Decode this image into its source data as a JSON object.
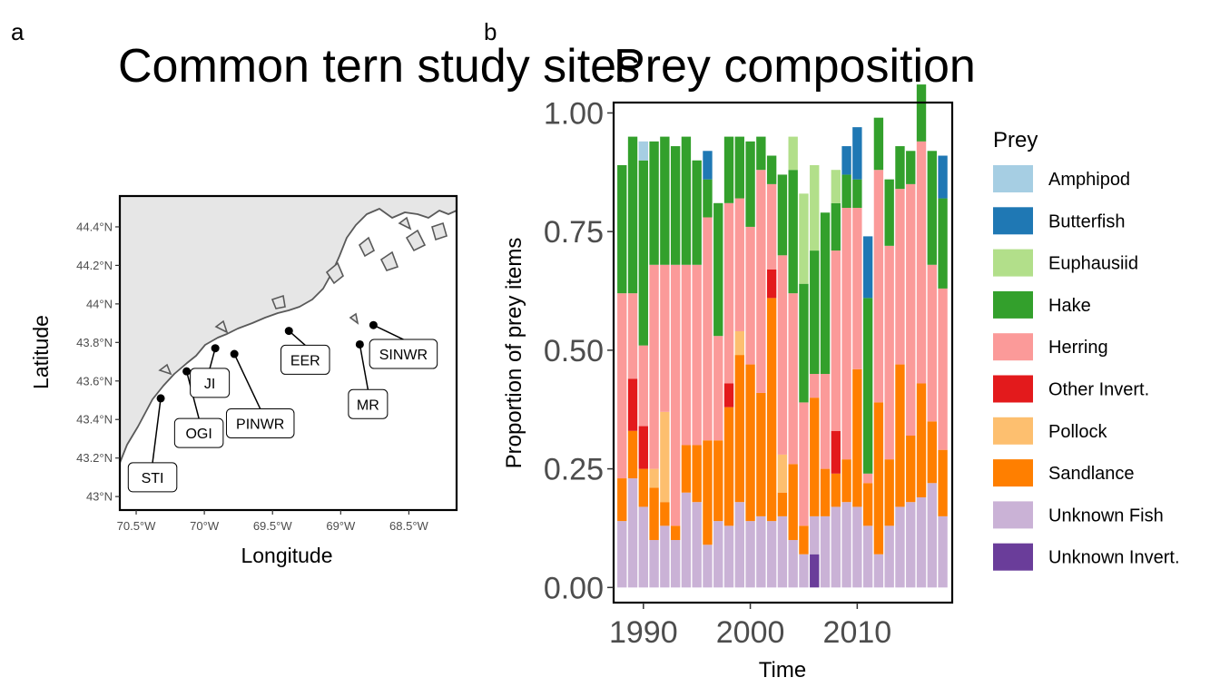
{
  "panel_a": {
    "letter": "a",
    "title": "Common tern study sites",
    "xlabel": "Longitude",
    "ylabel": "Latitude",
    "x_ticks": [
      "70.5°W",
      "70°W",
      "69.5°W",
      "69°W",
      "68.5°W"
    ],
    "x_tick_values": [
      -70.5,
      -70.0,
      -69.5,
      -69.0,
      -68.5
    ],
    "y_ticks": [
      "43°N",
      "43.2°N",
      "43.4°N",
      "43.6°N",
      "43.8°N",
      "44°N",
      "44.2°N",
      "44.4°N"
    ],
    "y_tick_values": [
      43.0,
      43.2,
      43.4,
      43.6,
      43.8,
      44.0,
      44.2,
      44.4
    ],
    "xlim": [
      -70.62,
      -68.15
    ],
    "ylim": [
      42.93,
      44.56
    ],
    "colors": {
      "land": "#e6e6e6",
      "coast": "#595959",
      "sea": "#ffffff"
    },
    "sites": [
      {
        "name": "STI",
        "lon": -70.32,
        "lat": 43.51,
        "label_lon": -70.38,
        "label_lat": 43.1
      },
      {
        "name": "OGI",
        "lon": -70.13,
        "lat": 43.65,
        "label_lon": -70.04,
        "label_lat": 43.33
      },
      {
        "name": "JI",
        "lon": -69.92,
        "lat": 43.77,
        "label_lon": -69.96,
        "label_lat": 43.59
      },
      {
        "name": "PINWR",
        "lon": -69.78,
        "lat": 43.74,
        "label_lon": -69.59,
        "label_lat": 43.38
      },
      {
        "name": "EER",
        "lon": -69.38,
        "lat": 43.86,
        "label_lon": -69.26,
        "label_lat": 43.71
      },
      {
        "name": "MR",
        "lon": -68.86,
        "lat": 43.79,
        "label_lon": -68.8,
        "label_lat": 43.48
      },
      {
        "name": "SINWR",
        "lon": -68.76,
        "lat": 43.89,
        "label_lon": -68.54,
        "label_lat": 43.74
      }
    ]
  },
  "chart_data": {
    "type": "bar",
    "letter": "b",
    "title": "Prey composition",
    "xlabel": "Time",
    "ylabel": "Proportion of prey items",
    "x_ticks": [
      "1990",
      "2000",
      "2010"
    ],
    "x_tick_values": [
      1990,
      2000,
      2010
    ],
    "y_ticks": [
      "0.00",
      "0.25",
      "0.50",
      "0.75",
      "1.00"
    ],
    "y_tick_values": [
      0,
      0.25,
      0.5,
      0.75,
      1.0
    ],
    "xlim": [
      1987.3,
      2018.8
    ],
    "ylim": [
      -0.03,
      1.02
    ],
    "stacked": true,
    "legend_title": "Prey",
    "legend_position": "right",
    "categories": [
      1988,
      1989,
      1990,
      1991,
      1992,
      1993,
      1994,
      1995,
      1996,
      1997,
      1998,
      1999,
      2000,
      2001,
      2002,
      2003,
      2004,
      2005,
      2006,
      2007,
      2008,
      2009,
      2010,
      2011,
      2012,
      2013,
      2014,
      2015,
      2016,
      2017,
      2018
    ],
    "series": [
      {
        "name": "Unknown Invert.",
        "color": "#6a3d9a",
        "values": [
          0,
          0,
          0,
          0,
          0,
          0,
          0,
          0,
          0,
          0,
          0,
          0,
          0,
          0,
          0,
          0,
          0,
          0,
          0.07,
          0,
          0,
          0,
          0,
          0,
          0,
          0,
          0,
          0,
          0,
          0,
          0
        ]
      },
      {
        "name": "Unknown Fish",
        "color": "#cab2d6",
        "values": [
          0.14,
          0.23,
          0.17,
          0.1,
          0.13,
          0.1,
          0.2,
          0.18,
          0.09,
          0.14,
          0.13,
          0.18,
          0.14,
          0.15,
          0.14,
          0.15,
          0.1,
          0.07,
          0.08,
          0.15,
          0.17,
          0.18,
          0.17,
          0.13,
          0.07,
          0.13,
          0.17,
          0.18,
          0.19,
          0.22,
          0.15
        ]
      },
      {
        "name": "Sandlance",
        "color": "#ff7f00",
        "values": [
          0.09,
          0.1,
          0.08,
          0.11,
          0.05,
          0.03,
          0.1,
          0.12,
          0.22,
          0.17,
          0.25,
          0.31,
          0.33,
          0.26,
          0.47,
          0.05,
          0.16,
          0.06,
          0.25,
          0.1,
          0.07,
          0.09,
          0.29,
          0.09,
          0.32,
          0.14,
          0.3,
          0.14,
          0.24,
          0.13,
          0.14
        ]
      },
      {
        "name": "Pollock",
        "color": "#fdbf6f",
        "values": [
          0,
          0,
          0,
          0.04,
          0.19,
          0,
          0,
          0,
          0,
          0,
          0,
          0.05,
          0,
          0,
          0,
          0.08,
          0,
          0,
          0,
          0,
          0,
          0,
          0,
          0,
          0,
          0,
          0,
          0,
          0,
          0,
          0
        ]
      },
      {
        "name": "Other Invert.",
        "color": "#e31a1c",
        "values": [
          0,
          0.11,
          0.09,
          0,
          0,
          0,
          0,
          0,
          0,
          0,
          0.05,
          0,
          0,
          0,
          0.06,
          0,
          0,
          0,
          0,
          0,
          0.09,
          0,
          0,
          0,
          0,
          0,
          0,
          0,
          0,
          0,
          0
        ]
      },
      {
        "name": "Herring",
        "color": "#fb9a99",
        "values": [
          0.39,
          0.18,
          0.17,
          0.43,
          0.31,
          0.55,
          0.38,
          0.38,
          0.47,
          0.22,
          0.38,
          0.28,
          0.29,
          0.47,
          0.18,
          0.42,
          0.36,
          0.26,
          0.05,
          0.2,
          0.38,
          0.53,
          0.34,
          0.02,
          0.49,
          0.45,
          0.37,
          0.53,
          0.51,
          0.33,
          0.34
        ]
      },
      {
        "name": "Hake",
        "color": "#33a02c",
        "values": [
          0.27,
          0.33,
          0.39,
          0.26,
          0.27,
          0.25,
          0.27,
          0.22,
          0.08,
          0.28,
          0.14,
          0.13,
          0.18,
          0.07,
          0.06,
          0.17,
          0.26,
          0.25,
          0.26,
          0.34,
          0.1,
          0.07,
          0.06,
          0.37,
          0.11,
          0.14,
          0.09,
          0.07,
          0.12,
          0.24,
          0.19
        ]
      },
      {
        "name": "Euphausiid",
        "color": "#b2df8a",
        "values": [
          0,
          0,
          0,
          0,
          0,
          0,
          0,
          0,
          0,
          0,
          0,
          0,
          0,
          0,
          0,
          0,
          0.07,
          0.19,
          0.18,
          0,
          0.07,
          0,
          0,
          0,
          0,
          0,
          0,
          0,
          0,
          0,
          0
        ]
      },
      {
        "name": "Butterfish",
        "color": "#1f78b4",
        "values": [
          0,
          0,
          0,
          0,
          0,
          0,
          0,
          0,
          0.06,
          0,
          0,
          0,
          0,
          0,
          0,
          0,
          0,
          0,
          0,
          0,
          0,
          0.06,
          0.11,
          0.13,
          0,
          0,
          0,
          0,
          0,
          0,
          0.09
        ]
      },
      {
        "name": "Amphipod",
        "color": "#a6cee3",
        "values": [
          0,
          0,
          0.04,
          0,
          0,
          0,
          0,
          0,
          0,
          0,
          0,
          0,
          0,
          0,
          0,
          0,
          0,
          0,
          0,
          0,
          0,
          0,
          0,
          0,
          0,
          0,
          0,
          0,
          0,
          0,
          0
        ]
      }
    ],
    "legend_order": [
      "Amphipod",
      "Butterfish",
      "Euphausiid",
      "Hake",
      "Herring",
      "Other Invert.",
      "Pollock",
      "Sandlance",
      "Unknown Fish",
      "Unknown Invert."
    ]
  }
}
